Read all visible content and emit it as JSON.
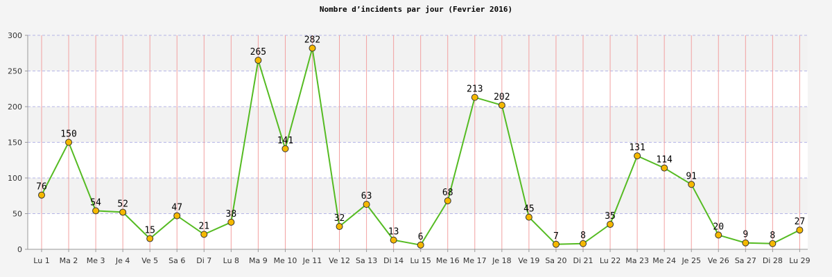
{
  "chart_data": {
    "type": "line",
    "title": "Nombre d’incidents par jour (Fevrier 2016)",
    "xlabel": "",
    "ylabel": "",
    "categories": [
      "Lu 1",
      "Ma 2",
      "Me 3",
      "Je 4",
      "Ve 5",
      "Sa 6",
      "Di 7",
      "Lu 8",
      "Ma 9",
      "Me 10",
      "Je 11",
      "Ve 12",
      "Sa 13",
      "Di 14",
      "Lu 15",
      "Me 16",
      "Me 17",
      "Je 18",
      "Ve 19",
      "Sa 20",
      "Di 21",
      "Lu 22",
      "Ma 23",
      "Me 24",
      "Je 25",
      "Ve 26",
      "Sa 27",
      "Di 28",
      "Lu 29"
    ],
    "values": [
      76,
      150,
      54,
      52,
      15,
      47,
      21,
      38,
      265,
      141,
      282,
      32,
      63,
      13,
      6,
      68,
      213,
      202,
      45,
      7,
      8,
      35,
      131,
      114,
      91,
      20,
      9,
      8,
      27
    ],
    "ylim": [
      0,
      300
    ],
    "yticks": [
      0,
      50,
      100,
      150,
      200,
      250,
      300
    ],
    "grid": true,
    "colors": {
      "line": "#55bb22",
      "marker_fill": "#f5b800",
      "marker_stroke": "#333333",
      "vertical_grid": "#f2a0a0",
      "horizontal_grid": "#b4b4e6",
      "band_light": "#ffffff",
      "band_dark": "#f2f2f2"
    }
  }
}
